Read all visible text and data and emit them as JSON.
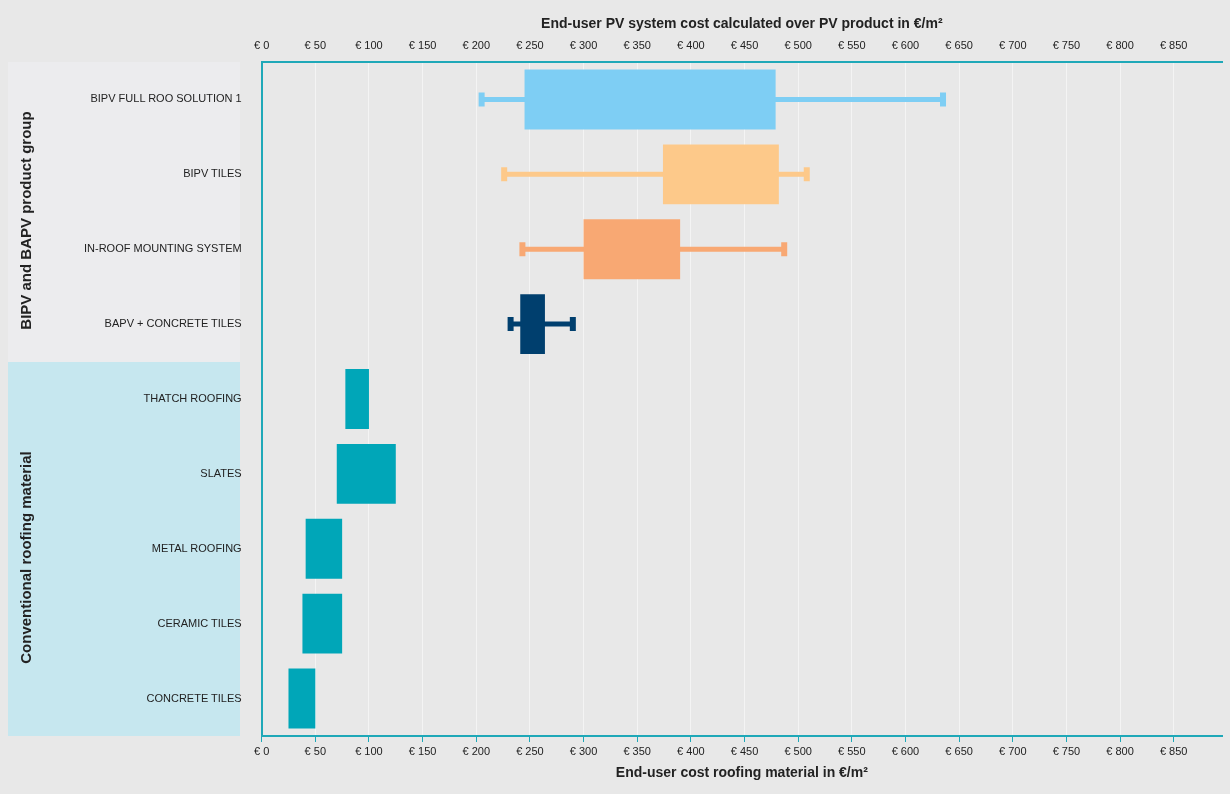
{
  "chart_data": {
    "type": "bar",
    "orientation": "horizontal",
    "categories": [
      "BIPV FULL ROO SOLUTION 1",
      "BIPV TILES",
      "IN-ROOF MOUNTING SYSTEM",
      "BAPV + CONCRETE TILES",
      "THATCH ROOFING",
      "SLATES",
      "METAL ROOFING",
      "CERAMIC TILES",
      "CONCRETE TILES"
    ],
    "base": [
      245,
      374,
      300,
      241,
      78,
      70,
      41,
      38,
      25
    ],
    "values": [
      234,
      108,
      90,
      23,
      22,
      55,
      34,
      37,
      25
    ],
    "errors": [
      [
        205,
        635
      ],
      [
        226,
        508
      ],
      [
        243,
        487
      ],
      [
        232,
        290
      ],
      null,
      null,
      null,
      null,
      null
    ],
    "colors": [
      "#7ecef4",
      "#fdc98a",
      "#f8a873",
      "#003f6e",
      "#00a6b8",
      "#00a6b8",
      "#00a6b8",
      "#00a6b8",
      "#00a6b8"
    ],
    "xlabel": "End-user cost roofing material in €/m²",
    "x2label": "End-user PV system cost calculated over PV product in €/m²",
    "xlim": [
      0,
      895
    ],
    "xticks": [
      {
        "value": 0,
        "label": "€ 0"
      },
      {
        "value": 50,
        "label": "€ 50"
      },
      {
        "value": 100,
        "label": "€ 100"
      },
      {
        "value": 150,
        "label": "€ 150"
      },
      {
        "value": 200,
        "label": "€ 200"
      },
      {
        "value": 250,
        "label": "€ 250"
      },
      {
        "value": 300,
        "label": "€ 300"
      },
      {
        "value": 350,
        "label": "€ 350"
      },
      {
        "value": 400,
        "label": "€ 400"
      },
      {
        "value": 450,
        "label": "€ 450"
      },
      {
        "value": 500,
        "label": "€ 500"
      },
      {
        "value": 550,
        "label": "€ 550"
      },
      {
        "value": 600,
        "label": "€ 600"
      },
      {
        "value": 650,
        "label": "€ 650"
      },
      {
        "value": 700,
        "label": "€ 700"
      },
      {
        "value": 750,
        "label": "€ 750"
      },
      {
        "value": 800,
        "label": "€ 800"
      },
      {
        "value": 850,
        "label": "€ 850"
      }
    ],
    "x2lim": [
      0,
      895
    ],
    "x2ticks": [
      {
        "value": 0,
        "label": "€ 0"
      },
      {
        "value": 50,
        "label": "€ 50"
      },
      {
        "value": 100,
        "label": "€ 100"
      },
      {
        "value": 150,
        "label": "€ 150"
      },
      {
        "value": 200,
        "label": "€ 200"
      },
      {
        "value": 250,
        "label": "€ 250"
      },
      {
        "value": 300,
        "label": "€ 300"
      },
      {
        "value": 350,
        "label": "€ 350"
      },
      {
        "value": 400,
        "label": "€ 400"
      },
      {
        "value": 450,
        "label": "€ 450"
      },
      {
        "value": 500,
        "label": "€ 500"
      },
      {
        "value": 550,
        "label": "€ 550"
      },
      {
        "value": 600,
        "label": "€ 600"
      },
      {
        "value": 650,
        "label": "€ 650"
      },
      {
        "value": 700,
        "label": "€ 700"
      },
      {
        "value": 750,
        "label": "€ 750"
      },
      {
        "value": 800,
        "label": "€ 800"
      },
      {
        "value": 850,
        "label": "€ 850"
      }
    ],
    "grid": "x",
    "annotations": [
      "BIPV and BAPV product group",
      "Conventional roofing material"
    ]
  }
}
